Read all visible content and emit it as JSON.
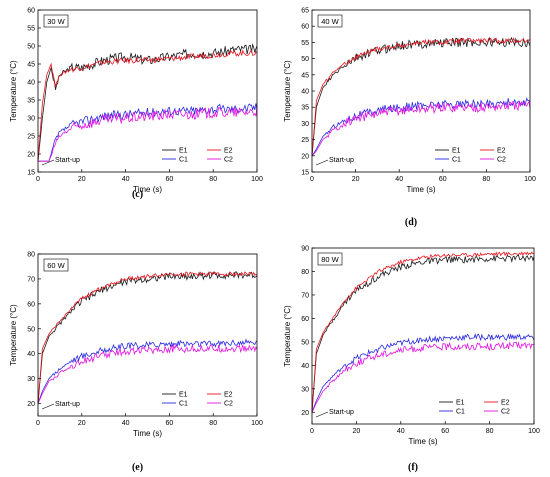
{
  "colors": {
    "E1": "#1a1a1a",
    "E2": "#e8141e",
    "C1": "#2a2ae0",
    "C2": "#e012e0"
  },
  "chart_data": [
    {
      "type": "line",
      "panel": "(c)",
      "power": "30 W",
      "xlabel": "Time (s)",
      "ylabel": "Temperature (°C)",
      "xlim": [
        0,
        100
      ],
      "ylim": [
        15,
        60
      ],
      "xticks": [
        0,
        20,
        40,
        60,
        80,
        100
      ],
      "yticks": [
        15,
        20,
        25,
        30,
        35,
        40,
        45,
        50,
        55,
        60
      ],
      "annotation": "Start-up",
      "legend": [
        "E1",
        "E2",
        "C1",
        "C2"
      ],
      "series": [
        {
          "name": "E1",
          "x": [
            0,
            2,
            4,
            6,
            8,
            10,
            15,
            20,
            30,
            40,
            50,
            60,
            70,
            80,
            90,
            100
          ],
          "y": [
            18,
            30,
            40,
            44,
            38,
            42,
            44,
            44,
            46,
            47,
            46,
            47,
            48,
            48,
            49,
            49
          ]
        },
        {
          "name": "E2",
          "x": [
            0,
            2,
            4,
            6,
            8,
            10,
            15,
            20,
            30,
            40,
            50,
            60,
            70,
            80,
            90,
            100
          ],
          "y": [
            18,
            34,
            42,
            45,
            39,
            42,
            43.5,
            44,
            45.5,
            46,
            46,
            46.5,
            47,
            47.5,
            48,
            48
          ]
        },
        {
          "name": "C1",
          "x": [
            0,
            5,
            6,
            8,
            10,
            15,
            20,
            30,
            40,
            50,
            60,
            70,
            80,
            90,
            100
          ],
          "y": [
            18,
            18,
            20,
            24,
            26,
            28,
            29,
            30.5,
            31,
            31.5,
            32,
            32,
            32.5,
            32.5,
            33
          ]
        },
        {
          "name": "C2",
          "x": [
            0,
            5,
            6,
            8,
            10,
            15,
            20,
            30,
            40,
            50,
            60,
            70,
            80,
            90,
            100
          ],
          "y": [
            18,
            18,
            19.5,
            23,
            25,
            27,
            28,
            29.5,
            30,
            30.5,
            31,
            31,
            31.5,
            31.5,
            32
          ]
        }
      ]
    },
    {
      "type": "line",
      "panel": "(d)",
      "power": "40 W",
      "xlabel": "Time (s)",
      "ylabel": "Temperature (°C)",
      "xlim": [
        0,
        100
      ],
      "ylim": [
        15,
        65
      ],
      "xticks": [
        0,
        20,
        40,
        60,
        80,
        100
      ],
      "yticks": [
        15,
        20,
        25,
        30,
        35,
        40,
        45,
        50,
        55,
        60,
        65
      ],
      "annotation": "Start-up",
      "legend": [
        "E1",
        "E2",
        "C1",
        "C2"
      ],
      "series": [
        {
          "name": "E1",
          "x": [
            0,
            2,
            5,
            10,
            15,
            20,
            30,
            40,
            50,
            60,
            70,
            80,
            90,
            100
          ],
          "y": [
            20,
            35,
            41,
            45,
            48,
            50,
            52.5,
            54,
            54.5,
            55,
            55,
            55,
            55,
            55
          ]
        },
        {
          "name": "E2",
          "x": [
            0,
            2,
            5,
            10,
            15,
            20,
            30,
            40,
            50,
            60,
            70,
            80,
            90,
            100
          ],
          "y": [
            20,
            37,
            42,
            46,
            48.5,
            50.5,
            53,
            54,
            55,
            55,
            55.5,
            55.5,
            55.5,
            55.5
          ]
        },
        {
          "name": "C1",
          "x": [
            0,
            2,
            5,
            10,
            15,
            20,
            30,
            40,
            50,
            60,
            70,
            80,
            90,
            100
          ],
          "y": [
            20,
            22,
            26,
            29,
            31,
            32.5,
            34,
            35,
            35.5,
            36,
            36,
            36,
            36.5,
            36.5
          ]
        },
        {
          "name": "C2",
          "x": [
            0,
            2,
            5,
            10,
            15,
            20,
            30,
            40,
            50,
            60,
            70,
            80,
            90,
            100
          ],
          "y": [
            20,
            21.5,
            25,
            28,
            30,
            31.5,
            33,
            34,
            34.5,
            35,
            35,
            35,
            35.5,
            35.5
          ]
        }
      ]
    },
    {
      "type": "line",
      "panel": "(e)",
      "power": "60 W",
      "xlabel": "Time (s)",
      "ylabel": "Temperature (°C)",
      "xlim": [
        0,
        100
      ],
      "ylim": [
        15,
        80
      ],
      "xticks": [
        0,
        20,
        40,
        60,
        80,
        100
      ],
      "yticks": [
        20,
        30,
        40,
        50,
        60,
        70,
        80
      ],
      "annotation": "Start-up",
      "legend": [
        "E1",
        "E2",
        "C1",
        "C2"
      ],
      "series": [
        {
          "name": "E1",
          "x": [
            0,
            2,
            5,
            10,
            15,
            20,
            30,
            40,
            50,
            60,
            70,
            80,
            90,
            100
          ],
          "y": [
            20,
            40,
            47,
            52,
            57,
            61,
            66,
            69,
            70,
            71,
            71,
            71.5,
            71.5,
            71.5
          ]
        },
        {
          "name": "E2",
          "x": [
            0,
            2,
            5,
            10,
            15,
            20,
            30,
            40,
            50,
            60,
            70,
            80,
            90,
            100
          ],
          "y": [
            20,
            42,
            48,
            53,
            58,
            62,
            67,
            70,
            71,
            72,
            72,
            72,
            72,
            72
          ]
        },
        {
          "name": "C1",
          "x": [
            0,
            2,
            5,
            10,
            15,
            20,
            30,
            40,
            50,
            60,
            70,
            80,
            90,
            100
          ],
          "y": [
            20,
            25,
            30,
            34,
            37,
            39,
            41.5,
            43,
            43.5,
            44,
            44,
            44,
            44.5,
            44.5
          ]
        },
        {
          "name": "C2",
          "x": [
            0,
            2,
            5,
            10,
            15,
            20,
            30,
            40,
            50,
            60,
            70,
            80,
            90,
            100
          ],
          "y": [
            20,
            24,
            29,
            32,
            35,
            37,
            39.5,
            41,
            41.5,
            42,
            42,
            42,
            42,
            42
          ]
        }
      ]
    },
    {
      "type": "line",
      "panel": "(f)",
      "power": "80 W",
      "xlabel": "Time (s)",
      "ylabel": "Temperature (°C)",
      "xlim": [
        0,
        100
      ],
      "ylim": [
        15,
        90
      ],
      "xticks": [
        0,
        20,
        40,
        60,
        80,
        100
      ],
      "yticks": [
        20,
        30,
        40,
        50,
        60,
        70,
        80,
        90
      ],
      "annotation": "Start-up",
      "legend": [
        "E1",
        "E2",
        "C1",
        "C2"
      ],
      "series": [
        {
          "name": "E1",
          "x": [
            0,
            2,
            5,
            10,
            15,
            20,
            30,
            40,
            50,
            60,
            70,
            80,
            90,
            100
          ],
          "y": [
            20,
            45,
            53,
            60,
            67,
            72,
            78,
            82,
            84,
            85,
            85,
            85.5,
            85.5,
            86
          ]
        },
        {
          "name": "E2",
          "x": [
            0,
            2,
            5,
            10,
            15,
            20,
            30,
            40,
            50,
            60,
            70,
            80,
            90,
            100
          ],
          "y": [
            20,
            47,
            54,
            61,
            68,
            73,
            80,
            84,
            86,
            87,
            87,
            87.5,
            87.5,
            88
          ]
        },
        {
          "name": "C1",
          "x": [
            0,
            2,
            5,
            10,
            15,
            20,
            30,
            40,
            50,
            60,
            70,
            80,
            90,
            100
          ],
          "y": [
            20,
            25,
            31,
            36,
            40,
            43,
            47,
            49.5,
            51,
            51.5,
            52,
            52,
            52,
            52
          ]
        },
        {
          "name": "C2",
          "x": [
            0,
            2,
            5,
            10,
            15,
            20,
            30,
            40,
            50,
            60,
            70,
            80,
            90,
            100
          ],
          "y": [
            20,
            24,
            29,
            34,
            38,
            41,
            44.5,
            46.5,
            47.5,
            48,
            48,
            48,
            48.5,
            48.5
          ]
        }
      ]
    }
  ]
}
